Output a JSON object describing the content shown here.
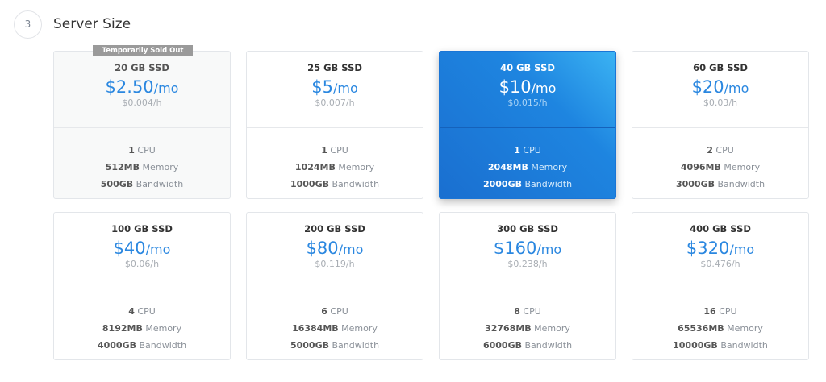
{
  "section": {
    "step": "3",
    "title": "Server Size"
  },
  "badge_text": "Temporarily Sold Out",
  "accent": "#2a87e0",
  "plans": [
    {
      "ssd": "20 GB SSD",
      "price": "$2.50",
      "per": "/mo",
      "hourly": "$0.004/h",
      "cpu": "1",
      "cpu_label": "CPU",
      "mem": "512MB",
      "mem_label": "Memory",
      "bw": "500GB",
      "bw_label": "Bandwidth",
      "sold_out": true,
      "selected": false
    },
    {
      "ssd": "25 GB SSD",
      "price": "$5",
      "per": "/mo",
      "hourly": "$0.007/h",
      "cpu": "1",
      "cpu_label": "CPU",
      "mem": "1024MB",
      "mem_label": "Memory",
      "bw": "1000GB",
      "bw_label": "Bandwidth",
      "sold_out": false,
      "selected": false
    },
    {
      "ssd": "40 GB SSD",
      "price": "$10",
      "per": "/mo",
      "hourly": "$0.015/h",
      "cpu": "1",
      "cpu_label": "CPU",
      "mem": "2048MB",
      "mem_label": "Memory",
      "bw": "2000GB",
      "bw_label": "Bandwidth",
      "sold_out": false,
      "selected": true
    },
    {
      "ssd": "60 GB SSD",
      "price": "$20",
      "per": "/mo",
      "hourly": "$0.03/h",
      "cpu": "2",
      "cpu_label": "CPU",
      "mem": "4096MB",
      "mem_label": "Memory",
      "bw": "3000GB",
      "bw_label": "Bandwidth",
      "sold_out": false,
      "selected": false
    },
    {
      "ssd": "100 GB SSD",
      "price": "$40",
      "per": "/mo",
      "hourly": "$0.06/h",
      "cpu": "4",
      "cpu_label": "CPU",
      "mem": "8192MB",
      "mem_label": "Memory",
      "bw": "4000GB",
      "bw_label": "Bandwidth",
      "sold_out": false,
      "selected": false
    },
    {
      "ssd": "200 GB SSD",
      "price": "$80",
      "per": "/mo",
      "hourly": "$0.119/h",
      "cpu": "6",
      "cpu_label": "CPU",
      "mem": "16384MB",
      "mem_label": "Memory",
      "bw": "5000GB",
      "bw_label": "Bandwidth",
      "sold_out": false,
      "selected": false
    },
    {
      "ssd": "300 GB SSD",
      "price": "$160",
      "per": "/mo",
      "hourly": "$0.238/h",
      "cpu": "8",
      "cpu_label": "CPU",
      "mem": "32768MB",
      "mem_label": "Memory",
      "bw": "6000GB",
      "bw_label": "Bandwidth",
      "sold_out": false,
      "selected": false
    },
    {
      "ssd": "400 GB SSD",
      "price": "$320",
      "per": "/mo",
      "hourly": "$0.476/h",
      "cpu": "16",
      "cpu_label": "CPU",
      "mem": "65536MB",
      "mem_label": "Memory",
      "bw": "10000GB",
      "bw_label": "Bandwidth",
      "sold_out": false,
      "selected": false
    }
  ]
}
